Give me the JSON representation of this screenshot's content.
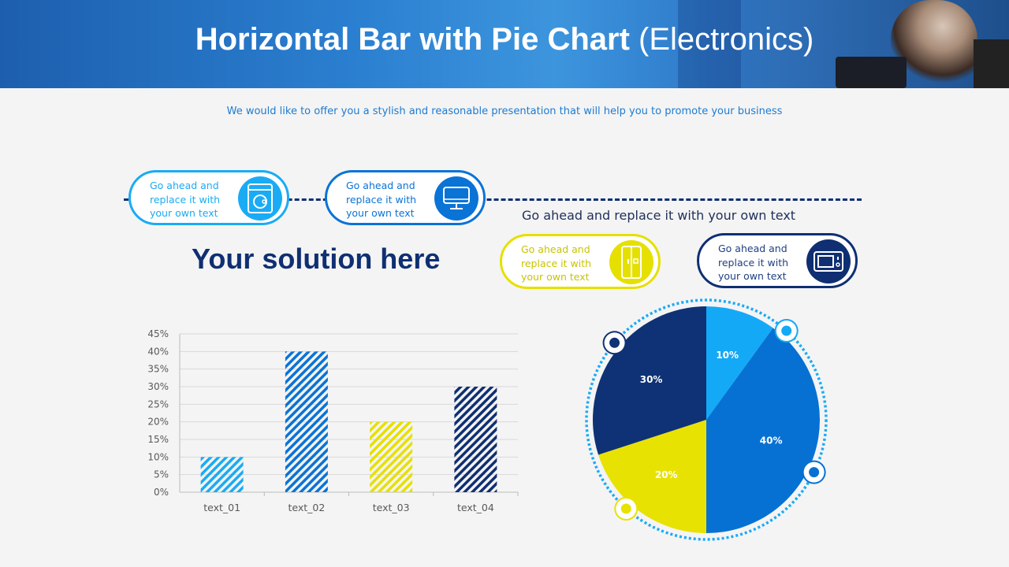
{
  "header": {
    "title_bold": "Horizontal Bar with Pie Chart",
    "title_light": "(Electronics)"
  },
  "subtitle": "We would like to offer you a stylish and reasonable presentation that will help you to promote your business",
  "callouts": [
    {
      "text": "Go ahead and replace it with your own text",
      "icon": "washing-machine-icon",
      "color": "#1aabf5"
    },
    {
      "text": "Go ahead and replace it with your own text",
      "icon": "monitor-icon",
      "color": "#0a73d6"
    },
    {
      "text": "Go ahead and replace it with your own text",
      "icon": "refrigerator-icon",
      "color": "#e6e000",
      "text_color": "#c9c400"
    },
    {
      "text": "Go ahead and replace it with your own text",
      "icon": "microwave-icon",
      "color": "#0f2f72",
      "text_color": "#1f3f82"
    }
  ],
  "mid_text": "Go ahead and replace it with your own text",
  "solution_heading": "Your solution here",
  "chart_data": [
    {
      "type": "bar",
      "categories": [
        "text_01",
        "text_02",
        "text_03",
        "text_04"
      ],
      "values": [
        10,
        40,
        20,
        30
      ],
      "ylim": [
        0,
        45
      ],
      "yticks": [
        "0%",
        "5%",
        "10%",
        "15%",
        "20%",
        "25%",
        "30%",
        "35%",
        "40%",
        "45%"
      ],
      "colors": [
        "#1aabf5",
        "#0a73d6",
        "#e6e000",
        "#0f2f72"
      ],
      "fill": "diagonal-hatch",
      "grid": true
    },
    {
      "type": "pie",
      "labels": [
        "10%",
        "40%",
        "20%",
        "30%"
      ],
      "values": [
        10,
        40,
        20,
        30
      ],
      "colors": [
        "#14a9f7",
        "#0671d3",
        "#e8e203",
        "#0e3275"
      ],
      "start": "top",
      "direction": "clockwise"
    }
  ]
}
